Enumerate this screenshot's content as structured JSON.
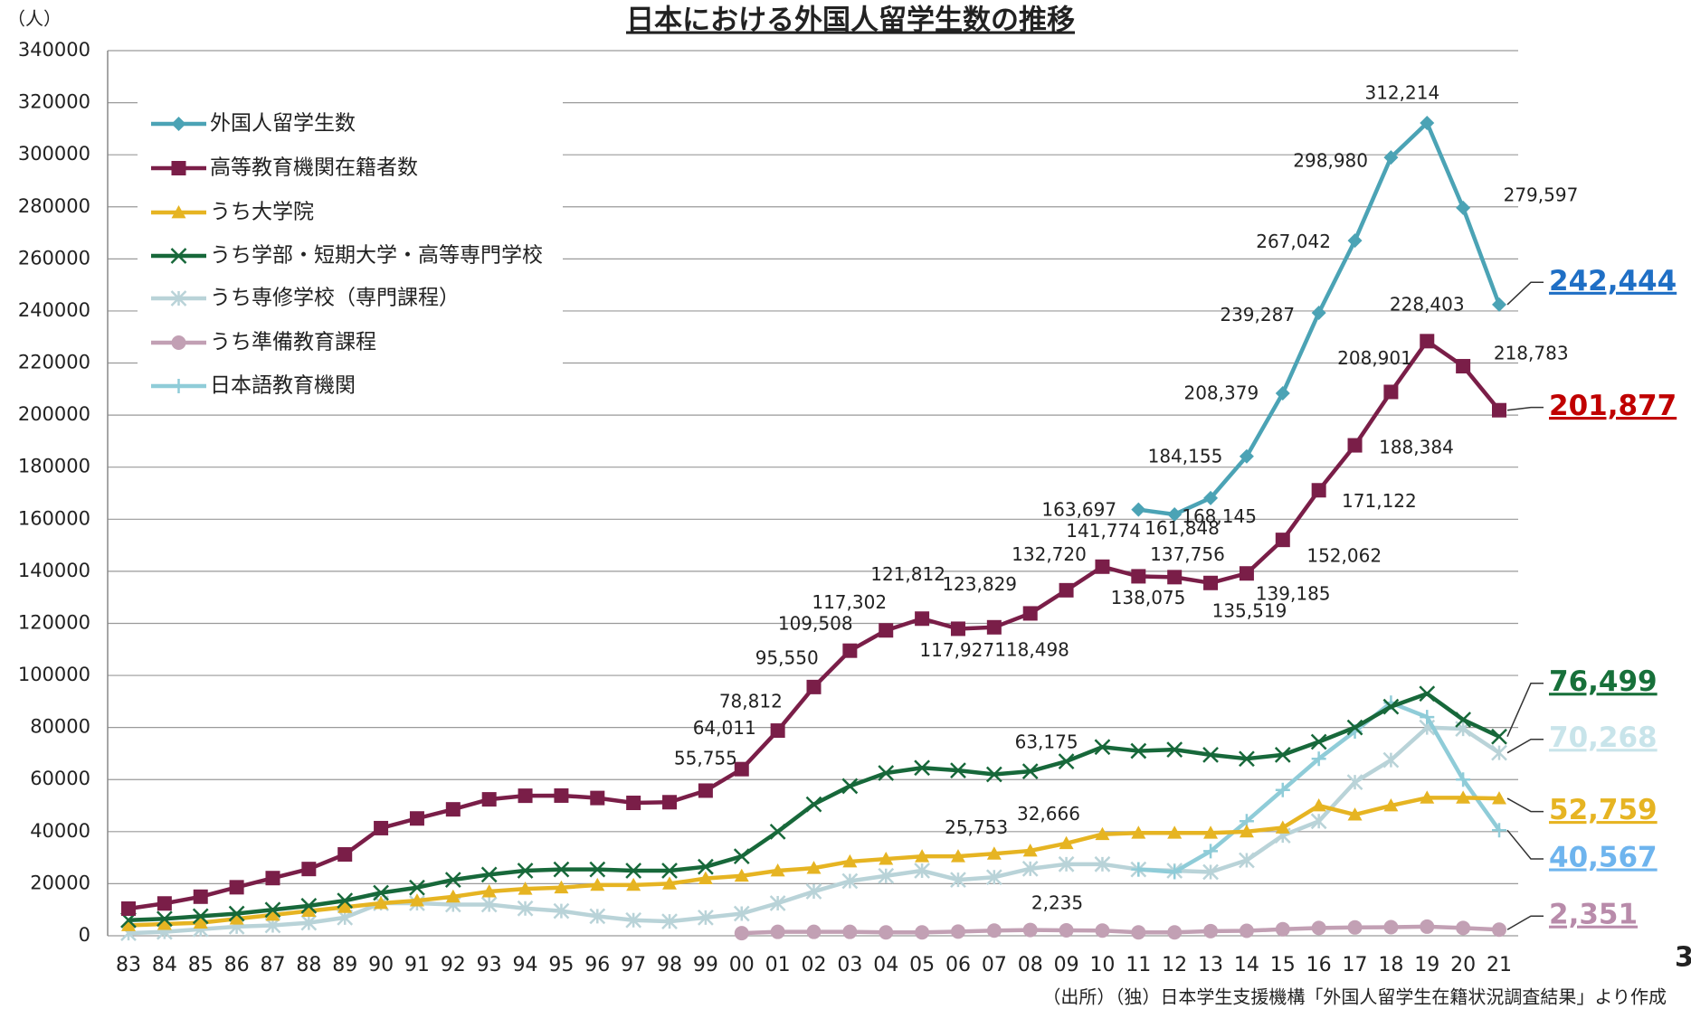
{
  "chart_data": {
    "type": "line",
    "title": "日本における外国人留学生数の推移",
    "y_unit": "（人）",
    "source": "（出所）（独）日本学生支援機構「外国人留学生在籍状況調査結果」より作成",
    "page_number": "3",
    "categories": [
      "83",
      "84",
      "85",
      "86",
      "87",
      "88",
      "89",
      "90",
      "91",
      "92",
      "93",
      "94",
      "95",
      "96",
      "97",
      "98",
      "99",
      "00",
      "01",
      "02",
      "03",
      "04",
      "05",
      "06",
      "07",
      "08",
      "09",
      "10",
      "11",
      "12",
      "13",
      "14",
      "15",
      "16",
      "17",
      "18",
      "19",
      "20",
      "21"
    ],
    "ylim": [
      0,
      340000
    ],
    "yticks": [
      0,
      20000,
      40000,
      60000,
      80000,
      100000,
      120000,
      140000,
      160000,
      180000,
      200000,
      220000,
      240000,
      260000,
      280000,
      300000,
      320000,
      340000
    ],
    "grid": true,
    "legend": "upper-left",
    "series": [
      {
        "name": "外国人留学生数",
        "color": "#4BA3B5",
        "marker": "diamond",
        "end_label_color": "#1F6FC5",
        "values": [
          null,
          null,
          null,
          null,
          null,
          null,
          null,
          null,
          null,
          null,
          null,
          null,
          null,
          null,
          null,
          null,
          null,
          null,
          null,
          null,
          null,
          null,
          null,
          null,
          null,
          null,
          null,
          null,
          163697,
          161848,
          168145,
          184155,
          208379,
          239287,
          267042,
          298980,
          312214,
          279597,
          242444
        ],
        "value_labels": [
          null,
          null,
          null,
          null,
          null,
          null,
          null,
          null,
          null,
          null,
          null,
          null,
          null,
          null,
          null,
          null,
          null,
          null,
          null,
          null,
          null,
          null,
          null,
          null,
          null,
          null,
          null,
          null,
          "163,697",
          "161,848",
          "168,145",
          "184,155",
          "208,379",
          "239,287",
          "267,042",
          "298,980",
          "312,214",
          "279,597",
          "242,444"
        ]
      },
      {
        "name": "高等教育機関在籍者数",
        "color": "#7A1E48",
        "marker": "square",
        "end_label_color": "#C00000",
        "values": [
          10428,
          12410,
          15009,
          18631,
          22154,
          25643,
          31251,
          41347,
          45066,
          48561,
          52405,
          53787,
          53847,
          52921,
          51047,
          51298,
          55755,
          64011,
          78812,
          95550,
          109508,
          117302,
          121812,
          117927,
          118498,
          123829,
          132720,
          141774,
          138075,
          137756,
          135519,
          139185,
          152062,
          171122,
          188384,
          208901,
          228403,
          218783,
          201877
        ],
        "value_labels": [
          null,
          null,
          null,
          null,
          null,
          null,
          null,
          null,
          null,
          null,
          null,
          null,
          null,
          null,
          null,
          null,
          "55,755",
          "64,011",
          "78,812",
          "95,550",
          "109,508",
          "117,302",
          "121,812",
          "117,927",
          "118,498",
          "123,829",
          "132,720",
          "141,774",
          "138,075",
          "137,756",
          "135,519",
          "139,185",
          "152,062",
          "171,122",
          "188,384",
          "208,901",
          "228,403",
          "218,783",
          "201,877"
        ]
      },
      {
        "name": "うち大学院",
        "color": "#E6B422",
        "marker": "triangle",
        "end_label_color": "#E6B422",
        "values": [
          4000,
          4500,
          5000,
          6500,
          8000,
          9500,
          11000,
          12500,
          13500,
          15000,
          17000,
          18000,
          18500,
          19500,
          19500,
          20000,
          22000,
          23000,
          25000,
          26000,
          28500,
          29500,
          30500,
          30500,
          31500,
          32666,
          35500,
          39000,
          39500,
          39500,
          39500,
          40000,
          41500,
          50000,
          46500,
          50000,
          53000,
          53000,
          52759
        ],
        "value_labels": [
          null,
          null,
          null,
          null,
          null,
          null,
          null,
          null,
          null,
          null,
          null,
          null,
          null,
          null,
          null,
          null,
          null,
          null,
          null,
          null,
          null,
          null,
          null,
          null,
          null,
          "32,666",
          null,
          null,
          null,
          null,
          null,
          null,
          null,
          null,
          null,
          null,
          null,
          null,
          "52,759"
        ]
      },
      {
        "name": "うち学部・短期大学・高等専門学校",
        "color": "#17683A",
        "marker": "x",
        "end_label_color": "#17703A",
        "values": [
          6000,
          6500,
          7500,
          8500,
          10000,
          11500,
          13500,
          16500,
          18500,
          21500,
          23500,
          25000,
          25500,
          25500,
          25000,
          25000,
          26500,
          30500,
          40000,
          50500,
          57500,
          62500,
          64500,
          63500,
          62000,
          63175,
          67000,
          72500,
          71000,
          71500,
          69500,
          68000,
          69500,
          74500,
          80000,
          88000,
          93000,
          83000,
          76499
        ],
        "value_labels": [
          null,
          null,
          null,
          null,
          null,
          null,
          null,
          null,
          null,
          null,
          null,
          null,
          null,
          null,
          null,
          null,
          null,
          null,
          null,
          null,
          null,
          null,
          null,
          null,
          null,
          "63,175",
          null,
          null,
          null,
          null,
          null,
          null,
          null,
          null,
          null,
          null,
          null,
          null,
          "76,499"
        ]
      },
      {
        "name": "うち専修学校（専門課程）",
        "color": "#B9D3D8",
        "marker": "asterisk",
        "end_label_color": "#C8E4EA",
        "values": [
          1000,
          1500,
          2500,
          3500,
          4000,
          5000,
          7000,
          12500,
          12500,
          12000,
          12000,
          10500,
          9500,
          7500,
          6000,
          5500,
          7000,
          8500,
          12500,
          17000,
          21000,
          23000,
          25000,
          21500,
          22500,
          25753,
          27500,
          27500,
          25500,
          25000,
          24500,
          29000,
          38500,
          44000,
          59000,
          67500,
          80000,
          79500,
          70268
        ],
        "value_labels": [
          null,
          null,
          null,
          null,
          null,
          null,
          null,
          null,
          null,
          null,
          null,
          null,
          null,
          null,
          null,
          null,
          null,
          null,
          null,
          null,
          null,
          null,
          null,
          null,
          null,
          "25,753",
          null,
          null,
          null,
          null,
          null,
          null,
          null,
          null,
          null,
          null,
          null,
          null,
          "70,268"
        ]
      },
      {
        "name": "うち準備教育課程",
        "color": "#C2A0B4",
        "marker": "circle",
        "end_label_color": "#B88BAA",
        "values": [
          null,
          null,
          null,
          null,
          null,
          null,
          null,
          null,
          null,
          null,
          null,
          null,
          null,
          null,
          null,
          null,
          null,
          1000,
          1500,
          1500,
          1500,
          1300,
          1300,
          1600,
          2000,
          2235,
          2100,
          2000,
          1300,
          1300,
          1800,
          1900,
          2500,
          3000,
          3200,
          3300,
          3500,
          3000,
          2351
        ],
        "value_labels": [
          null,
          null,
          null,
          null,
          null,
          null,
          null,
          null,
          null,
          null,
          null,
          null,
          null,
          null,
          null,
          null,
          null,
          null,
          null,
          null,
          null,
          null,
          null,
          null,
          null,
          "2,235",
          null,
          null,
          null,
          null,
          null,
          null,
          null,
          null,
          null,
          null,
          null,
          null,
          "2,351"
        ]
      },
      {
        "name": "日本語教育機関",
        "color": "#8FCCD8",
        "marker": "plus",
        "end_label_color": "#6EB4EE",
        "values": [
          null,
          null,
          null,
          null,
          null,
          null,
          null,
          null,
          null,
          null,
          null,
          null,
          null,
          null,
          null,
          null,
          null,
          null,
          null,
          null,
          null,
          null,
          null,
          null,
          null,
          null,
          null,
          null,
          25500,
          24500,
          32500,
          44000,
          56000,
          68000,
          78500,
          89500,
          84000,
          60000,
          40567
        ],
        "value_labels": [
          null,
          null,
          null,
          null,
          null,
          null,
          null,
          null,
          null,
          null,
          null,
          null,
          null,
          null,
          null,
          null,
          null,
          null,
          null,
          null,
          null,
          null,
          null,
          null,
          null,
          null,
          null,
          null,
          null,
          null,
          null,
          null,
          null,
          null,
          null,
          null,
          null,
          null,
          "40,567"
        ]
      }
    ]
  }
}
